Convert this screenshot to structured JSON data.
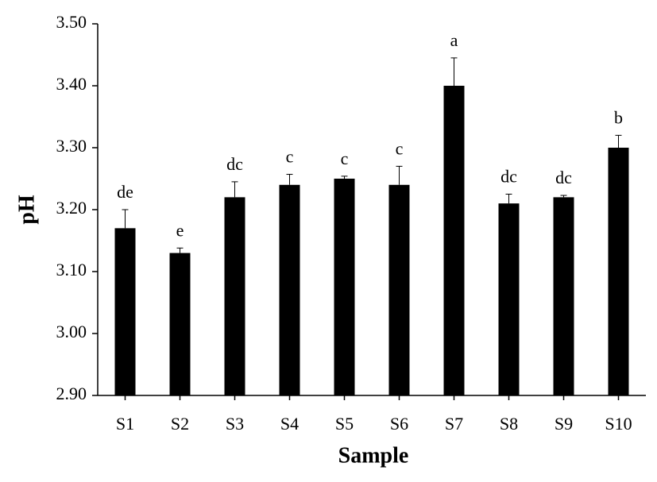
{
  "chart_data": {
    "type": "bar",
    "x_label": "Sample",
    "y_label": "pH",
    "categories": [
      "S1",
      "S2",
      "S3",
      "S4",
      "S5",
      "S6",
      "S7",
      "S8",
      "S9",
      "S10"
    ],
    "values": [
      3.17,
      3.13,
      3.22,
      3.24,
      3.25,
      3.24,
      3.4,
      3.21,
      3.22,
      3.3
    ],
    "errors": [
      0.03,
      0.008,
      0.025,
      0.017,
      0.004,
      0.03,
      0.045,
      0.015,
      0.003,
      0.02
    ],
    "significance_letters": [
      "de",
      "e",
      "dc",
      "c",
      "c",
      "c",
      "a",
      "dc",
      "dc",
      "b"
    ],
    "color": "#000000",
    "ylim": [
      2.9,
      3.5
    ],
    "yticks": [
      {
        "value": 2.9,
        "label": "2.90"
      },
      {
        "value": 3.0,
        "label": "3.00"
      },
      {
        "value": 3.1,
        "label": "3.10"
      },
      {
        "value": 3.2,
        "label": "3.20"
      },
      {
        "value": 3.3,
        "label": "3.30"
      },
      {
        "value": 3.4,
        "label": "3.40"
      },
      {
        "value": 3.5,
        "label": "3.50"
      }
    ],
    "grid": false
  }
}
